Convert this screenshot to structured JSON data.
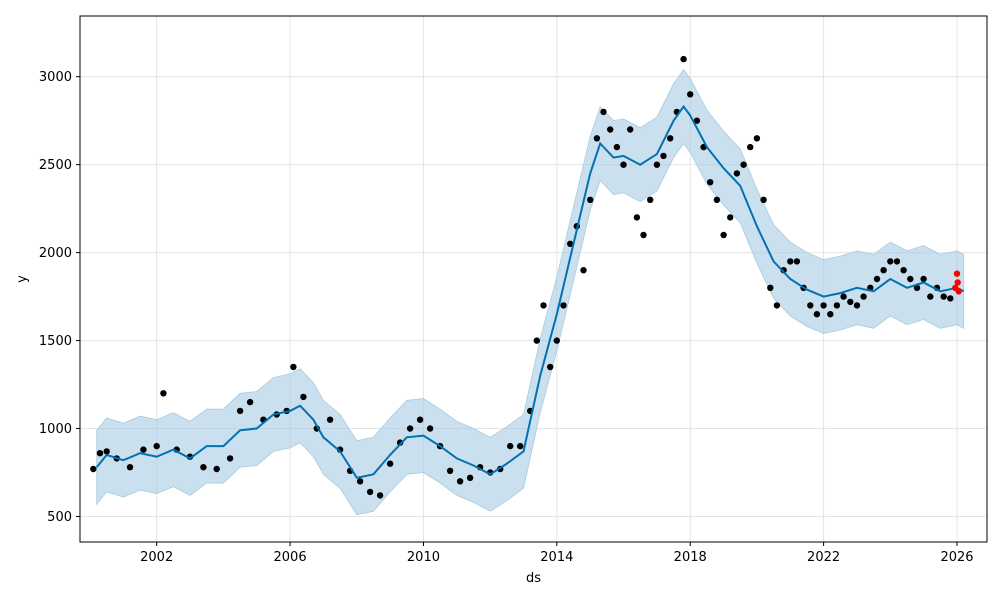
{
  "chart_data": {
    "type": "scatter",
    "title": "",
    "xlabel": "ds",
    "ylabel": "y",
    "x_type": "year",
    "xlim": [
      1999.7,
      2026.9
    ],
    "ylim": [
      355,
      3345
    ],
    "grid": true,
    "xticks": [
      {
        "value": 2002,
        "label": "2002"
      },
      {
        "value": 2006,
        "label": "2006"
      },
      {
        "value": 2010,
        "label": "2010"
      },
      {
        "value": 2014,
        "label": "2014"
      },
      {
        "value": 2018,
        "label": "2018"
      },
      {
        "value": 2022,
        "label": "2022"
      },
      {
        "value": 2026,
        "label": "2026"
      }
    ],
    "yticks": [
      {
        "value": 500,
        "label": "500"
      },
      {
        "value": 1000,
        "label": "1000"
      },
      {
        "value": 1500,
        "label": "1500"
      },
      {
        "value": 2000,
        "label": "2000"
      },
      {
        "value": 2500,
        "label": "2500"
      },
      {
        "value": 3000,
        "label": "3000"
      }
    ],
    "series": [
      {
        "role": "forecast",
        "color": "#0072B2",
        "band_color": "#A6CBE3",
        "x": [
          2000.2,
          2000.5,
          2001.0,
          2001.5,
          2002.0,
          2002.5,
          2003.0,
          2003.5,
          2004.0,
          2004.5,
          2005.0,
          2005.5,
          2006.0,
          2006.3,
          2006.7,
          2007.0,
          2007.5,
          2008.0,
          2008.5,
          2009.0,
          2009.5,
          2010.0,
          2010.5,
          2011.0,
          2011.5,
          2012.0,
          2012.5,
          2013.0,
          2013.5,
          2014.0,
          2014.5,
          2015.0,
          2015.3,
          2015.7,
          2016.0,
          2016.5,
          2017.0,
          2017.5,
          2017.8,
          2018.0,
          2018.5,
          2019.0,
          2019.5,
          2020.0,
          2020.5,
          2021.0,
          2021.5,
          2022.0,
          2022.5,
          2023.0,
          2023.5,
          2024.0,
          2024.5,
          2025.0,
          2025.5,
          2026.0,
          2026.2
        ],
        "yhat": [
          780,
          850,
          820,
          860,
          840,
          880,
          830,
          900,
          900,
          990,
          1000,
          1080,
          1100,
          1130,
          1050,
          950,
          870,
          720,
          740,
          850,
          950,
          960,
          900,
          830,
          790,
          740,
          800,
          870,
          1300,
          1650,
          2050,
          2450,
          2620,
          2540,
          2550,
          2500,
          2560,
          2750,
          2830,
          2780,
          2600,
          2480,
          2380,
          2150,
          1950,
          1850,
          1790,
          1750,
          1770,
          1800,
          1780,
          1850,
          1800,
          1830,
          1780,
          1800,
          1780
        ],
        "band_half_width": 210
      },
      {
        "role": "observed",
        "color": "#000000",
        "x": [
          2000.1,
          2000.3,
          2000.5,
          2000.8,
          2001.2,
          2001.6,
          2002.0,
          2002.2,
          2002.6,
          2003.0,
          2003.4,
          2003.8,
          2004.2,
          2004.5,
          2004.8,
          2005.2,
          2005.6,
          2005.9,
          2006.1,
          2006.4,
          2006.8,
          2007.2,
          2007.5,
          2007.8,
          2008.1,
          2008.4,
          2008.7,
          2009.0,
          2009.3,
          2009.6,
          2009.9,
          2010.2,
          2010.5,
          2010.8,
          2011.1,
          2011.4,
          2011.7,
          2012.0,
          2012.3,
          2012.6,
          2012.9,
          2013.2,
          2013.4,
          2013.6,
          2013.8,
          2014.0,
          2014.2,
          2014.4,
          2014.6,
          2014.8,
          2015.0,
          2015.2,
          2015.4,
          2015.6,
          2015.8,
          2016.0,
          2016.2,
          2016.4,
          2016.6,
          2016.8,
          2017.0,
          2017.2,
          2017.4,
          2017.6,
          2017.8,
          2018.0,
          2018.2,
          2018.4,
          2018.6,
          2018.8,
          2019.0,
          2019.2,
          2019.4,
          2019.6,
          2019.8,
          2020.0,
          2020.2,
          2020.4,
          2020.6,
          2020.8,
          2021.0,
          2021.2,
          2021.4,
          2021.6,
          2021.8,
          2022.0,
          2022.2,
          2022.4,
          2022.6,
          2022.8,
          2023.0,
          2023.2,
          2023.4,
          2023.6,
          2023.8,
          2024.0,
          2024.2,
          2024.4,
          2024.6,
          2024.8,
          2025.0,
          2025.2,
          2025.4,
          2025.6,
          2025.8
        ],
        "y": [
          770,
          860,
          870,
          830,
          780,
          880,
          900,
          1200,
          880,
          840,
          780,
          770,
          830,
          1100,
          1150,
          1050,
          1080,
          1100,
          1350,
          1180,
          1000,
          1050,
          880,
          760,
          700,
          640,
          620,
          800,
          920,
          1000,
          1050,
          1000,
          900,
          760,
          700,
          720,
          780,
          750,
          770,
          900,
          900,
          1100,
          1500,
          1700,
          1350,
          1500,
          1700,
          2050,
          2150,
          1900,
          2300,
          2650,
          2800,
          2700,
          2600,
          2500,
          2700,
          2200,
          2100,
          2300,
          2500,
          2550,
          2650,
          2800,
          3100,
          2900,
          2750,
          2600,
          2400,
          2300,
          2100,
          2200,
          2450,
          2500,
          2600,
          2650,
          2300,
          1800,
          1700,
          1900,
          1950,
          1950,
          1800,
          1700,
          1650,
          1700,
          1650,
          1700,
          1750,
          1720,
          1700,
          1750,
          1800,
          1850,
          1900,
          1950,
          1950,
          1900,
          1850,
          1800,
          1850,
          1750,
          1800,
          1750,
          1740
        ]
      },
      {
        "role": "recent",
        "color": "#FF0000",
        "x": [
          2025.95,
          2026.0,
          2026.02,
          2026.05
        ],
        "y": [
          1800,
          1880,
          1830,
          1780
        ]
      }
    ]
  }
}
